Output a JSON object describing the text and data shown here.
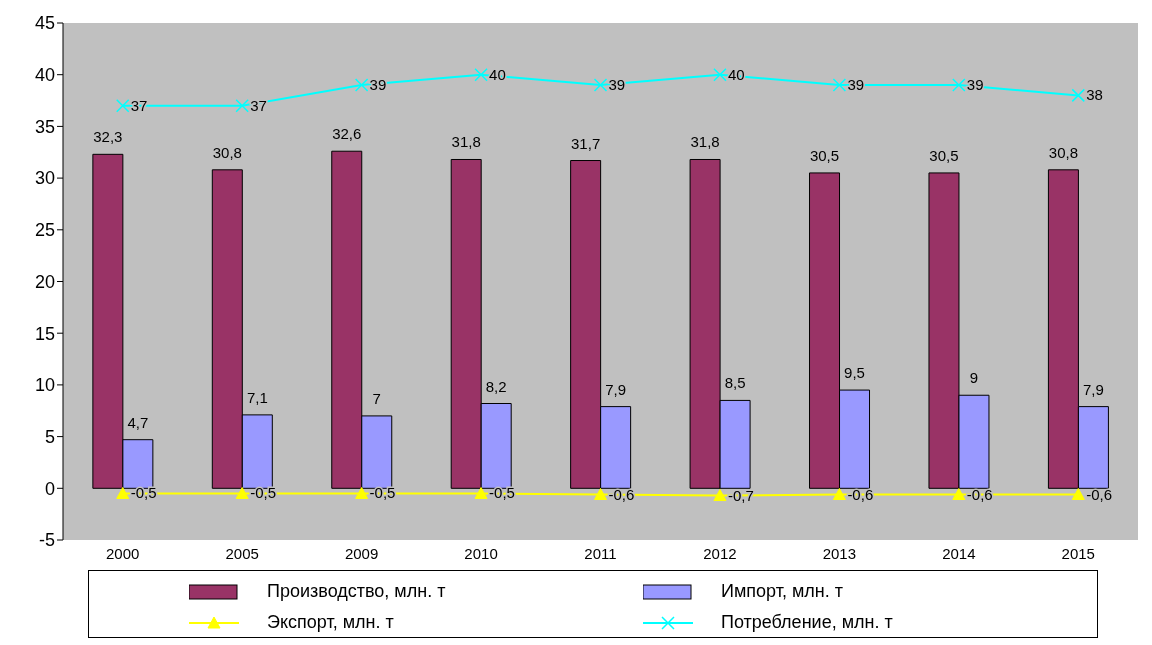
{
  "chart_data": {
    "type": "bar",
    "categories": [
      "2000",
      "2005",
      "2009",
      "2010",
      "2011",
      "2012",
      "2013",
      "2014",
      "2015"
    ],
    "series": [
      {
        "name": "Производство, млн. т",
        "color": "#993366",
        "values": [
          32.3,
          30.8,
          32.6,
          31.8,
          31.7,
          31.8,
          30.5,
          30.5,
          30.8
        ],
        "value_labels": [
          "32,3",
          "30,8",
          "32,6",
          "31,8",
          "31,7",
          "31,8",
          "30,5",
          "30,5",
          "30,8"
        ]
      },
      {
        "name": "Импорт, млн. т",
        "color": "#9999ff",
        "values": [
          4.7,
          7.1,
          7,
          8.2,
          7.9,
          8.5,
          9.5,
          9,
          7.9
        ],
        "value_labels": [
          "4,7",
          "7,1",
          "7",
          "8,2",
          "7,9",
          "8,5",
          "9,5",
          "9",
          "7,9"
        ]
      },
      {
        "name": "Экспорт, млн. т",
        "type": "line",
        "marker": "triangle",
        "color": "#ffff00",
        "values": [
          -0.5,
          -0.5,
          -0.5,
          -0.5,
          -0.6,
          -0.7,
          -0.6,
          -0.6,
          -0.6
        ],
        "value_labels": [
          "-0,5",
          "-0,5",
          "-0,5",
          "-0,5",
          "-0,6",
          "-0,7",
          "-0,6",
          "-0,6",
          "-0,6"
        ]
      },
      {
        "name": "Потребление, млн. т",
        "type": "line",
        "marker": "cross",
        "color": "#00ffff",
        "values": [
          37,
          37,
          39,
          40,
          39,
          40,
          39,
          39,
          38
        ],
        "value_labels": [
          "37",
          "37",
          "39",
          "40",
          "39",
          "40",
          "39",
          "39",
          "38"
        ]
      }
    ],
    "ylim": [
      -5,
      45
    ],
    "yticks": [
      -5,
      0,
      5,
      10,
      15,
      20,
      25,
      30,
      35,
      40,
      45
    ],
    "legend": "bottom",
    "line_style": "solid"
  }
}
